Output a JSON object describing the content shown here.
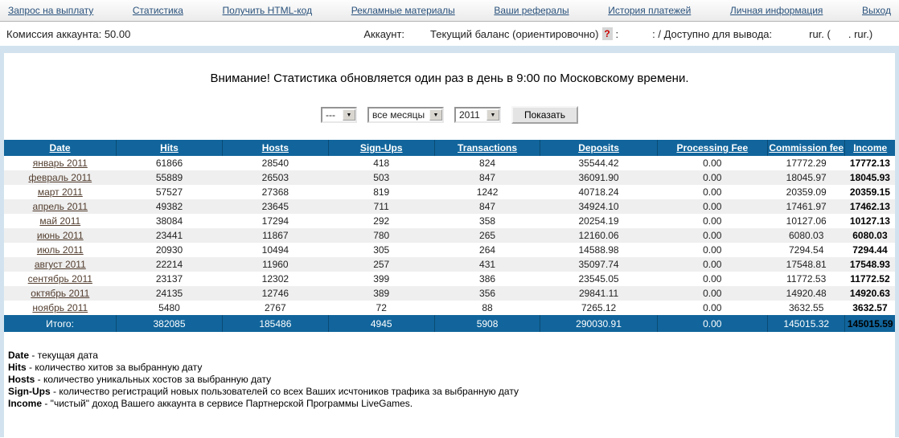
{
  "nav": {
    "items": [
      "Запрос на выплату",
      "Статистика",
      "Получить HTML-код",
      "Рекламные материалы",
      "Ваши рефералы",
      "История платежей",
      "Личная информация",
      "Выход"
    ]
  },
  "account": {
    "commission": "Комиссия аккаунта: 50.00",
    "account_label": "Аккаунт:",
    "balance_label": "Текущий баланс (ориентировочно)",
    "help_icon": "?",
    "balance_colon": ":",
    "available_label": ": / Доступно для вывода:",
    "currency_open": "rur. (",
    "currency_close": ". rur.)"
  },
  "notice": "Внимание! Статистика обновляется один раз в день в 9:00 по Московскому времени.",
  "filters": {
    "day": "---",
    "month": "все месяцы",
    "year": "2011",
    "show": "Показать"
  },
  "table": {
    "headers": [
      "Date",
      "Hits",
      "Hosts",
      "Sign-Ups",
      "Transactions",
      "Deposits",
      "Processing Fee",
      "Commission fee",
      "Income"
    ],
    "rows": [
      [
        "январь 2011",
        "61866",
        "28540",
        "418",
        "824",
        "35544.42",
        "0.00",
        "17772.29",
        "17772.13"
      ],
      [
        "февраль 2011",
        "55889",
        "26503",
        "503",
        "847",
        "36091.90",
        "0.00",
        "18045.97",
        "18045.93"
      ],
      [
        "март 2011",
        "57527",
        "27368",
        "819",
        "1242",
        "40718.24",
        "0.00",
        "20359.09",
        "20359.15"
      ],
      [
        "апрель 2011",
        "49382",
        "23645",
        "711",
        "847",
        "34924.10",
        "0.00",
        "17461.97",
        "17462.13"
      ],
      [
        "май 2011",
        "38084",
        "17294",
        "292",
        "358",
        "20254.19",
        "0.00",
        "10127.06",
        "10127.13"
      ],
      [
        "июнь 2011",
        "23441",
        "11867",
        "780",
        "265",
        "12160.06",
        "0.00",
        "6080.03",
        "6080.03"
      ],
      [
        "июль 2011",
        "20930",
        "10494",
        "305",
        "264",
        "14588.98",
        "0.00",
        "7294.54",
        "7294.44"
      ],
      [
        "август 2011",
        "22214",
        "11960",
        "257",
        "431",
        "35097.74",
        "0.00",
        "17548.81",
        "17548.93"
      ],
      [
        "сентябрь 2011",
        "23137",
        "12302",
        "399",
        "386",
        "23545.05",
        "0.00",
        "11772.53",
        "11772.52"
      ],
      [
        "октябрь 2011",
        "24135",
        "12746",
        "389",
        "356",
        "29841.11",
        "0.00",
        "14920.48",
        "14920.63"
      ],
      [
        "ноябрь 2011",
        "5480",
        "2767",
        "72",
        "88",
        "7265.12",
        "0.00",
        "3632.55",
        "3632.57"
      ]
    ],
    "totals": [
      "Итого:",
      "382085",
      "185486",
      "4945",
      "5908",
      "290030.91",
      "0.00",
      "145015.32",
      "145015.59"
    ]
  },
  "legend": [
    {
      "term": "Date",
      "desc": " - текущая дата"
    },
    {
      "term": "Hits",
      "desc": " - количество хитов за выбранную дату"
    },
    {
      "term": "Hosts",
      "desc": " - количество уникальных хостов за выбранную дату"
    },
    {
      "term": "Sign-Ups",
      "desc": " - количество регистраций новых пользователей со всех Ваших исчтоников трафика за выбранную дату"
    },
    {
      "term": "Income",
      "desc": " - \"чистый\" доход Вашего аккаунта в сервисе Партнерской Программы LiveGames."
    }
  ],
  "colors": {
    "header_blue": "#11659c",
    "row_alt": "#efefef",
    "nav_link": "#2a527c",
    "help_red": "#cc0000",
    "bar_light_blue": "#d2e3ef"
  }
}
